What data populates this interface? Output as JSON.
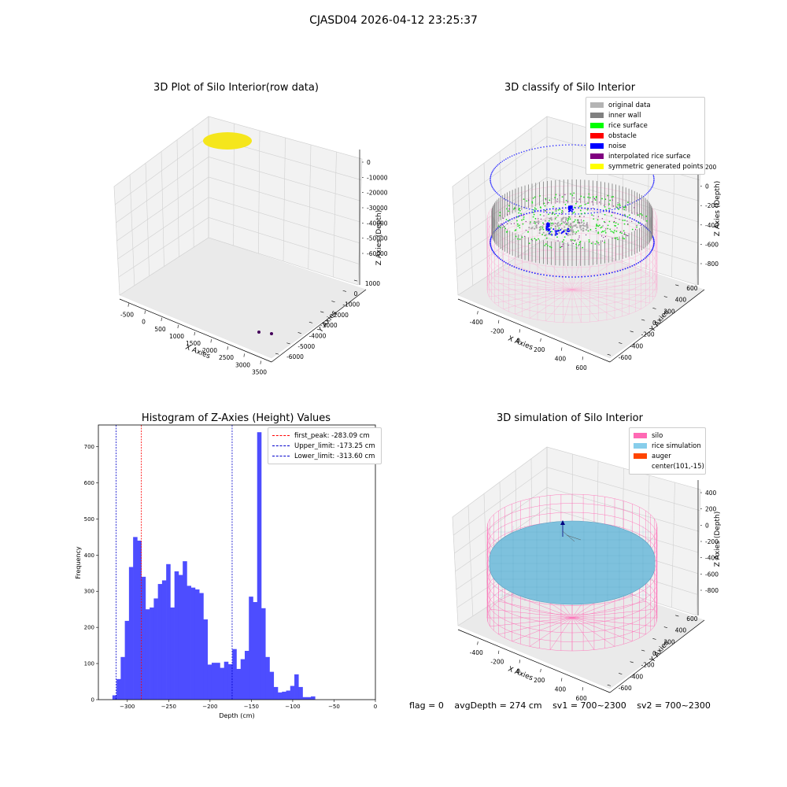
{
  "suptitle": "CJASD04 2026-04-12 23:25:37",
  "panels": {
    "raw": {
      "title": "3D Plot of Silo Interior(row data)",
      "xlabel": "X Axies",
      "ylabel": "Y Axies",
      "zlabel": "Z Axies (Depth)",
      "xticks": [
        "-500",
        "0",
        "500",
        "1000",
        "1500",
        "2000",
        "2500",
        "3000",
        "3500"
      ],
      "yticks": [
        "1000",
        "0",
        "-1000",
        "-2000",
        "-3000",
        "-4000",
        "-5000",
        "-6000"
      ],
      "zticks": [
        "0",
        "-10000",
        "-20000",
        "-30000",
        "-40000",
        "-50000",
        "-60000"
      ]
    },
    "classify": {
      "title": "3D classify of Silo Interior",
      "xlabel": "X Axies",
      "ylabel": "Y Axies",
      "zlabel": "Z Axies (Depth)",
      "xticks": [
        "-400",
        "-200",
        "0",
        "200",
        "400",
        "600"
      ],
      "yticks": [
        "600",
        "400",
        "200",
        "0",
        "-200",
        "-400",
        "-600"
      ],
      "zticks": [
        "200",
        "0",
        "-200",
        "-400",
        "-600",
        "-800"
      ],
      "legend": [
        {
          "label": "original data",
          "color": "#b4b4b4"
        },
        {
          "label": "inner wall",
          "color": "#808080"
        },
        {
          "label": "rice surface",
          "color": "#00ff00"
        },
        {
          "label": "obstacle",
          "color": "#ff0000"
        },
        {
          "label": "noise",
          "color": "#0000ff"
        },
        {
          "label": "interpolated rice surface",
          "color": "#800080"
        },
        {
          "label": "symmetric generated points",
          "color": "#ffff00"
        }
      ]
    },
    "sim": {
      "title": "3D simulation of Silo Interior",
      "xlabel": "X Axies",
      "ylabel": "Y Axies",
      "zlabel": "Z Axies (Depth)",
      "xticks": [
        "-400",
        "-200",
        "0",
        "200",
        "400",
        "600"
      ],
      "yticks": [
        "600",
        "400",
        "200",
        "0",
        "-200",
        "-400",
        "-600"
      ],
      "zticks": [
        "400",
        "200",
        "0",
        "-200",
        "-400",
        "-600",
        "-800"
      ],
      "legend": [
        {
          "label": "silo",
          "color": "#ff69b4"
        },
        {
          "label": "rice simulation",
          "color": "#87ceeb"
        },
        {
          "label": "auger",
          "color": "#ff4500"
        },
        {
          "label": "center(101,-15)",
          "color": "transparent"
        }
      ]
    }
  },
  "chart_data": [
    {
      "type": "bar",
      "title": "Histogram of Z-Axies (Height) Values",
      "xlabel": "Depth (cm)",
      "ylabel": "Frequency",
      "xlim": [
        -335,
        0
      ],
      "ylim": [
        0,
        760
      ],
      "bar_color": "#4d4dff",
      "xticks": [
        -300,
        -250,
        -200,
        -150,
        -100,
        -50,
        0
      ],
      "yticks": [
        0,
        100,
        200,
        300,
        400,
        500,
        600,
        700
      ],
      "bin_start": -318,
      "bin_width": 5,
      "values": [
        12,
        57,
        118,
        218,
        367,
        450,
        440,
        340,
        250,
        255,
        280,
        320,
        330,
        375,
        255,
        355,
        345,
        383,
        315,
        310,
        305,
        295,
        222,
        97,
        102,
        102,
        88,
        105,
        98,
        140,
        85,
        112,
        135,
        285,
        270,
        740,
        253,
        118,
        77,
        35,
        20,
        22,
        25,
        38,
        70,
        35,
        7,
        7,
        9
      ],
      "vlines": [
        {
          "x": -283.09,
          "color": "#ff0000",
          "label": "first_peak: -283.09 cm"
        },
        {
          "x": -173.25,
          "color": "#0000cc",
          "label": "Upper_limit: -173.25 cm"
        },
        {
          "x": -313.6,
          "color": "#0000cc",
          "label": "Lower_limit: -313.60 cm"
        }
      ],
      "legend_position": "upper right"
    }
  ],
  "status": {
    "flag": "flag = 0",
    "avg_depth": "avgDepth = 274 cm",
    "sv1": "sv1 = 700~2300",
    "sv2": "sv2 = 700~2300"
  }
}
